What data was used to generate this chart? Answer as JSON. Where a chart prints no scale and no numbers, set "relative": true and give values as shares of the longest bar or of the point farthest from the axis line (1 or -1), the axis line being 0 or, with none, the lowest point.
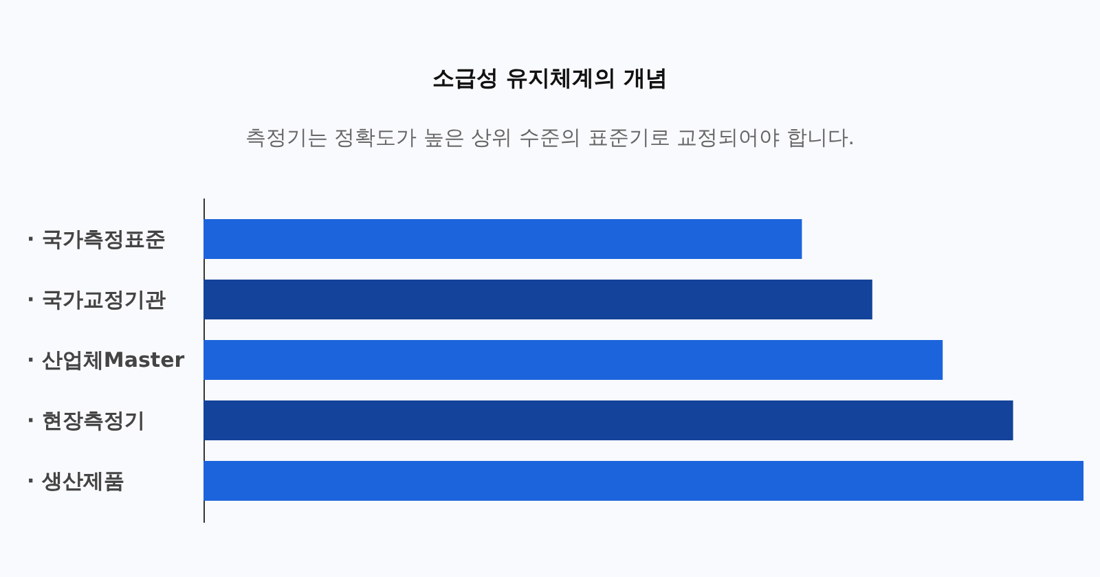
{
  "chart_data": {
    "type": "bar",
    "orientation": "horizontal",
    "relative": true,
    "title": "소급성 유지체계의 개념",
    "subtitle": "측정기는 정확도가 높은 상위 수준의 표준기로 교정되어야 합니다.",
    "categories": [
      "· 국가측정표준",
      "· 국가교정기관",
      "· 산업체Master",
      "· 현장측정기",
      "· 생산제품"
    ],
    "values": [
      0.68,
      0.76,
      0.84,
      0.92,
      1
    ],
    "colors": [
      "#1c64db",
      "#13439a",
      "#1c64db",
      "#13439a",
      "#1c64db"
    ]
  }
}
